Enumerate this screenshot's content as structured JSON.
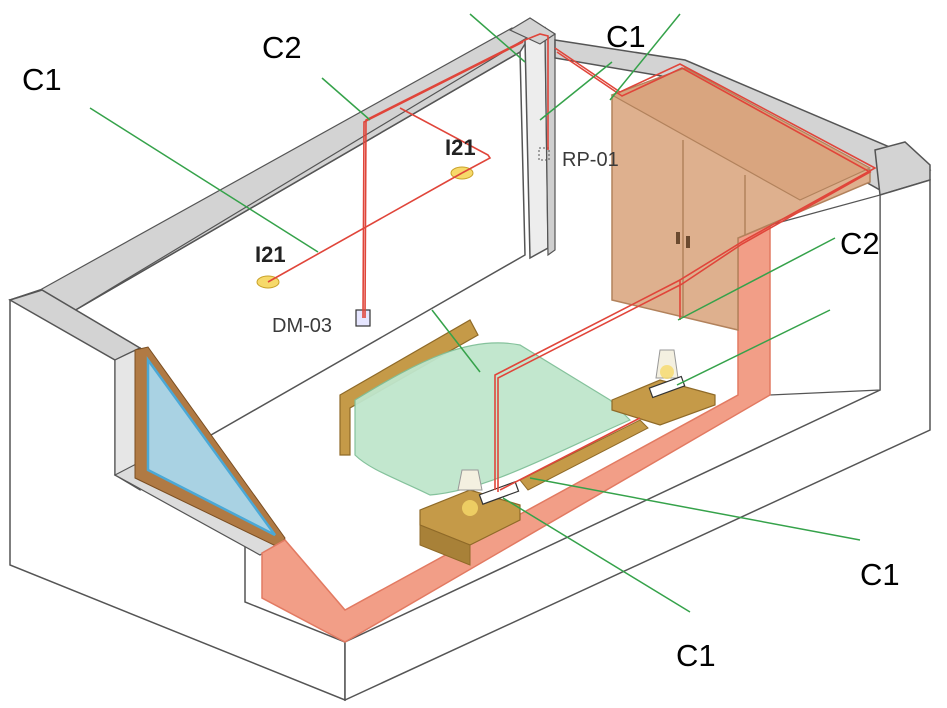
{
  "colors": {
    "wall_top": "#d3d3d3",
    "wall_face": "#ffffff",
    "wall_edge": "#555555",
    "wiring": "#e0453a",
    "conduit": "#f29e87",
    "callout_line": "#35a24a",
    "wardrobe": "#deb08e",
    "headboard": "#c59a48",
    "bedspread": "#bfe6cc",
    "window_glass": "#a9d2e3",
    "window_frame": "#b07a44",
    "lamp_fixture": "#f6d96a"
  },
  "callouts": {
    "c1_top_left": "C1",
    "c2_top": "C2",
    "c1_top_right": "C1",
    "c2_right": "C2",
    "c1_bottom_right": "C1",
    "c1_bottom": "C1"
  },
  "fixtures": {
    "lamp_left": "I21",
    "lamp_right": "I21",
    "dimmer": "DM-03",
    "junction": "RP-01"
  }
}
